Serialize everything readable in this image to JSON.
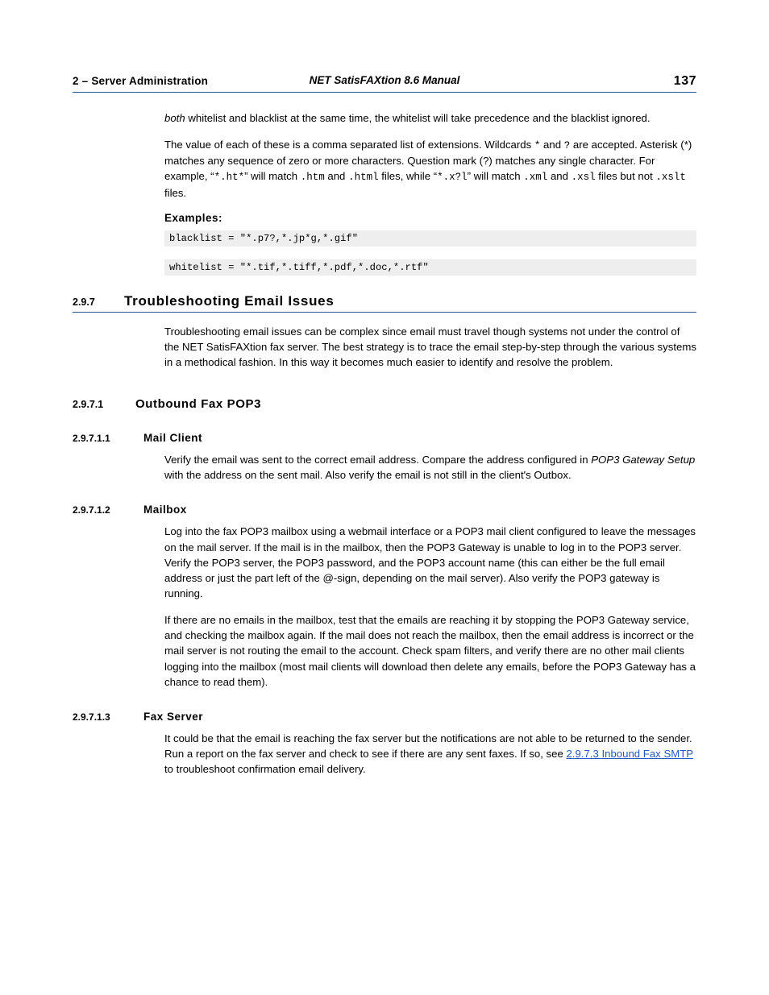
{
  "header": {
    "chapter_num": "2",
    "chapter_sep": " – ",
    "chapter_title": "Server Administration",
    "doc_title": "NET SatisFAXtion 8.6 Manual",
    "page_num": "137"
  },
  "intro": {
    "p1_pre_italic": "both",
    "p1_rest": " whitelist and blacklist at the same time, the whitelist will take precedence and the blacklist ignored.",
    "p2_a": "The value of each of these is a comma separated list of extensions. Wildcards ",
    "p2_wc1": "*",
    "p2_b": " and ",
    "p2_wc2": "?",
    "p2_c": " are accepted. Asterisk (*) matches any sequence of zero or more characters. Question mark (?) matches any single character. For example, “",
    "p2_m1": "*.ht*",
    "p2_d": "” will match ",
    "p2_m2": ".htm",
    "p2_e": " and ",
    "p2_m3": ".html",
    "p2_f": " files, while “",
    "p2_m4": "*.x?l",
    "p2_g": "” will match ",
    "p2_m5": ".xml",
    "p2_h": " and ",
    "p2_m6": ".xsl",
    "p2_i": " files but not ",
    "p2_m7": ".xslt",
    "p2_j": " files.",
    "examples_label": "Examples:",
    "code1": "blacklist = \"*.p7?,*.jp*g,*.gif\"",
    "code2": "whitelist = \"*.tif,*.tiff,*.pdf,*.doc,*.rtf\""
  },
  "s297": {
    "num": "2.9.7",
    "title": "Troubleshooting Email Issues",
    "p1": "Troubleshooting email issues can be complex since email must travel though systems not under the control of the NET SatisFAXtion fax server. The best strategy is to trace the email step-by-step through the various systems in a methodical fashion. In this way it becomes much easier to identify and resolve the problem."
  },
  "s2971": {
    "num": "2.9.7.1",
    "title": "Outbound Fax POP3"
  },
  "s29711": {
    "num": "2.9.7.1.1",
    "title": "Mail Client",
    "p1_a": "Verify the email was sent to the correct email address. Compare the address configured in ",
    "p1_i": "POP3 Gateway Setup",
    "p1_b": " with the address on the sent mail. Also verify the email is not still in the client's Outbox."
  },
  "s29712": {
    "num": "2.9.7.1.2",
    "title": "Mailbox",
    "p1": "Log into the fax POP3 mailbox using a webmail interface or a POP3 mail client configured to leave the messages on the mail server. If the mail is in the mailbox, then the POP3 Gateway is unable to log in to the POP3 server. Verify the POP3 server, the POP3 password, and the POP3 account name (this can either be the full email address or just the part left of the @-sign, depending on the mail server). Also verify the POP3 gateway is running.",
    "p2": "If there are no emails in the mailbox, test that the emails are reaching it by stopping the POP3 Gateway service, and checking the mailbox again. If the mail does not reach the mailbox, then the email address is incorrect or the mail server is not routing the email to the account. Check spam filters, and verify there are no other mail clients logging into the mailbox (most mail clients will download then delete any emails, before the POP3 Gateway has a chance to read them)."
  },
  "s29713": {
    "num": "2.9.7.1.3",
    "title": "Fax Server",
    "p1_a": "It could be that the email is reaching the fax server but the notifications are not able to be returned to the sender. Run a report on the fax server and check to see if there are any sent faxes. If so, see ",
    "p1_link": " 2.9.7.3  Inbound Fax SMTP",
    "p1_b": " to troubleshoot confirmation email delivery."
  }
}
